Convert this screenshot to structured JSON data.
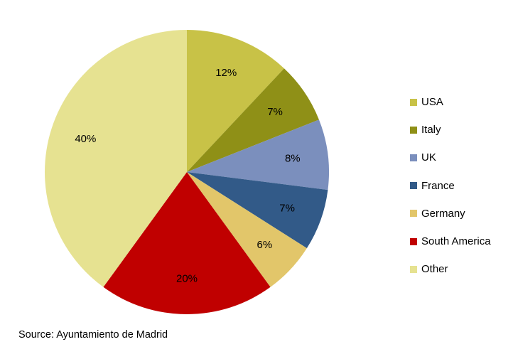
{
  "chart_data": {
    "type": "pie",
    "categories": [
      "USA",
      "Italy",
      "UK",
      "France",
      "Germany",
      "South America",
      "Other"
    ],
    "values": [
      12,
      7,
      8,
      7,
      6,
      20,
      40
    ],
    "data_labels": [
      "12%",
      "7%",
      "8%",
      "7%",
      "6%",
      "20%",
      "40%"
    ],
    "colors": [
      "#c8c247",
      "#8f9017",
      "#7b8fbd",
      "#325a88",
      "#e2c66a",
      "#c00000",
      "#e6e291"
    ],
    "start": "12 o'clock",
    "direction": "clockwise",
    "legend_position": "right"
  },
  "source": "Source: Ayuntamiento de Madrid"
}
